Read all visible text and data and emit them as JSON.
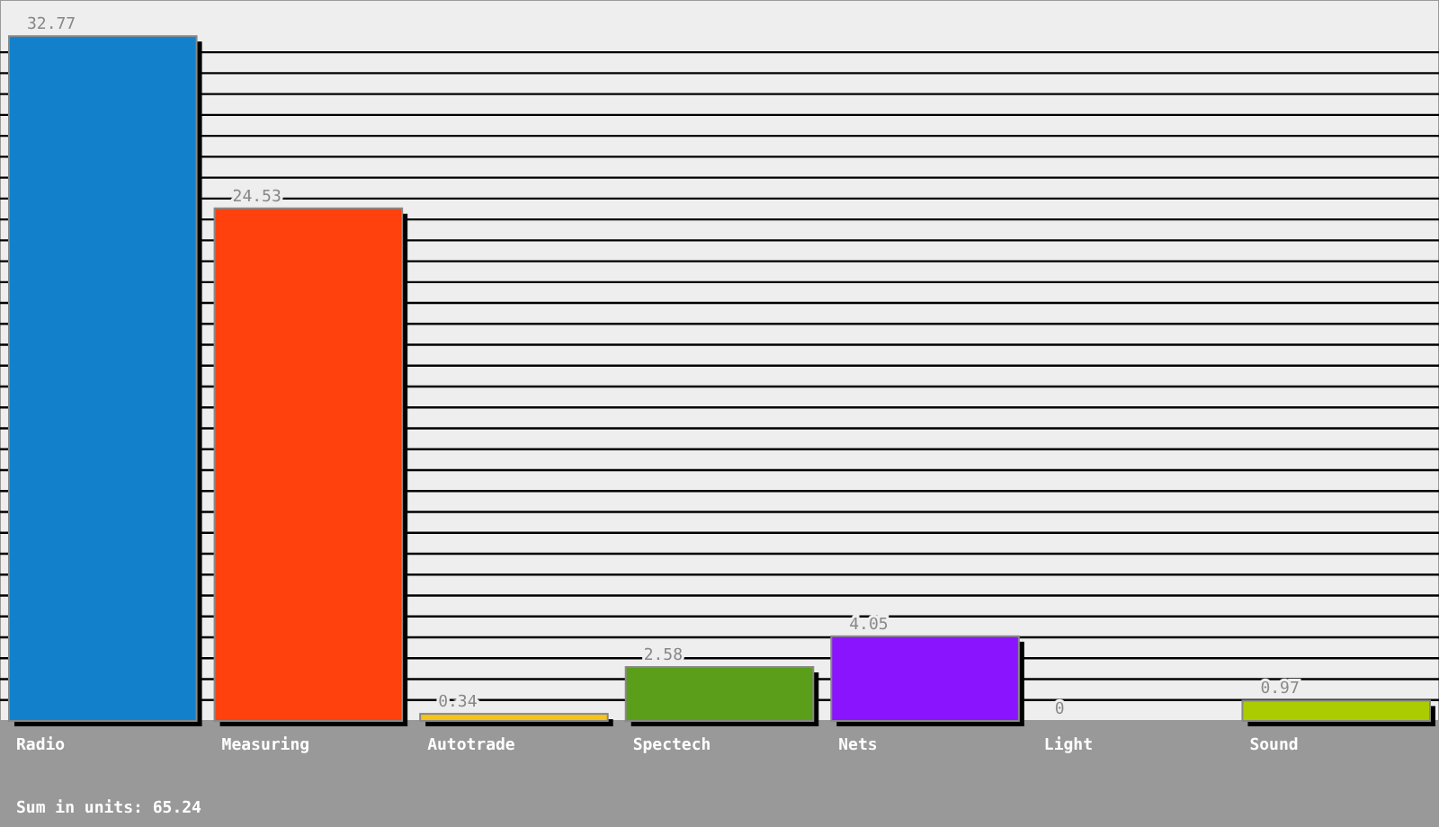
{
  "chart_data": {
    "type": "bar",
    "categories": [
      "Radio",
      "Measuring",
      "Autotrade",
      "Spectech",
      "Nets",
      "Light",
      "Sound"
    ],
    "values": [
      32.77,
      24.53,
      0.34,
      2.58,
      4.05,
      0,
      0.97
    ],
    "colors": [
      "#1380cc",
      "#ff410d",
      "#f5c31a",
      "#5a9e1a",
      "#8b14ff",
      "#333333",
      "#aacc00"
    ],
    "ylim": [
      0,
      34.5
    ],
    "yticks": [
      {
        "value": 1,
        "label": null
      },
      {
        "value": 2,
        "label": null
      },
      {
        "value": 3,
        "label": null
      },
      {
        "value": 4,
        "label": null
      },
      {
        "value": 5,
        "label": null
      },
      {
        "value": 6,
        "label": null
      },
      {
        "value": 7,
        "label": null
      },
      {
        "value": 8,
        "label": null
      },
      {
        "value": 9,
        "label": null
      },
      {
        "value": 10,
        "label": null
      },
      {
        "value": 11,
        "label": null
      },
      {
        "value": 12,
        "label": null
      },
      {
        "value": 13,
        "label": null
      },
      {
        "value": 14,
        "label": null
      },
      {
        "value": 15,
        "label": null
      },
      {
        "value": 16,
        "label": null
      },
      {
        "value": 17,
        "label": null
      },
      {
        "value": 18,
        "label": null
      },
      {
        "value": 19,
        "label": null
      },
      {
        "value": 20,
        "label": null
      },
      {
        "value": 21,
        "label": null
      },
      {
        "value": 22,
        "label": null
      },
      {
        "value": 23,
        "label": null
      },
      {
        "value": 24,
        "label": null
      },
      {
        "value": 25,
        "label": null
      },
      {
        "value": 26,
        "label": null
      },
      {
        "value": 27,
        "label": null
      },
      {
        "value": 28,
        "label": null
      },
      {
        "value": 29,
        "label": null
      },
      {
        "value": 30,
        "label": null
      },
      {
        "value": 31,
        "label": null
      },
      {
        "value": 32,
        "label": null
      }
    ],
    "grid": "y",
    "tick_labels": "x",
    "data_labels": true,
    "annotations": [
      "Sum in units: 65.24"
    ]
  }
}
